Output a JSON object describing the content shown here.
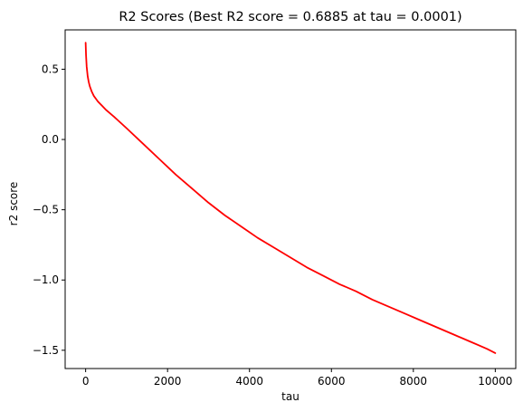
{
  "chart_data": {
    "type": "line",
    "title": "R2 Scores (Best R2 score = 0.6885 at tau = 0.0001)",
    "xlabel": "tau",
    "ylabel": "r2 score",
    "xlim": [
      -500,
      10500
    ],
    "ylim": [
      -1.63,
      0.78
    ],
    "x_ticks": [
      0,
      2000,
      4000,
      6000,
      8000,
      10000
    ],
    "x_tick_labels": [
      "0",
      "2000",
      "4000",
      "6000",
      "8000",
      "10000"
    ],
    "y_ticks": [
      0.5,
      0.0,
      -0.5,
      -1.0,
      -1.5
    ],
    "y_tick_labels": [
      "0.5",
      "0.0",
      "−0.5",
      "−1.0",
      "−1.5"
    ],
    "grid": false,
    "series": [
      {
        "color": "#ff0000",
        "x": [
          0.0001,
          10,
          25,
          50,
          75,
          100,
          150,
          200,
          300,
          400,
          500,
          700,
          1000,
          1400,
          1800,
          2200,
          2600,
          3000,
          3400,
          3800,
          4200,
          4600,
          5000,
          5400,
          5800,
          6200,
          6600,
          7000,
          7400,
          7800,
          8200,
          8600,
          9000,
          9400,
          9800,
          10000
        ],
        "y": [
          0.6885,
          0.6,
          0.52,
          0.45,
          0.41,
          0.38,
          0.34,
          0.31,
          0.27,
          0.24,
          0.21,
          0.16,
          0.08,
          -0.03,
          -0.14,
          -0.25,
          -0.35,
          -0.45,
          -0.54,
          -0.62,
          -0.7,
          -0.77,
          -0.84,
          -0.91,
          -0.97,
          -1.03,
          -1.08,
          -1.14,
          -1.19,
          -1.24,
          -1.29,
          -1.34,
          -1.39,
          -1.44,
          -1.49,
          -1.52
        ]
      }
    ]
  }
}
